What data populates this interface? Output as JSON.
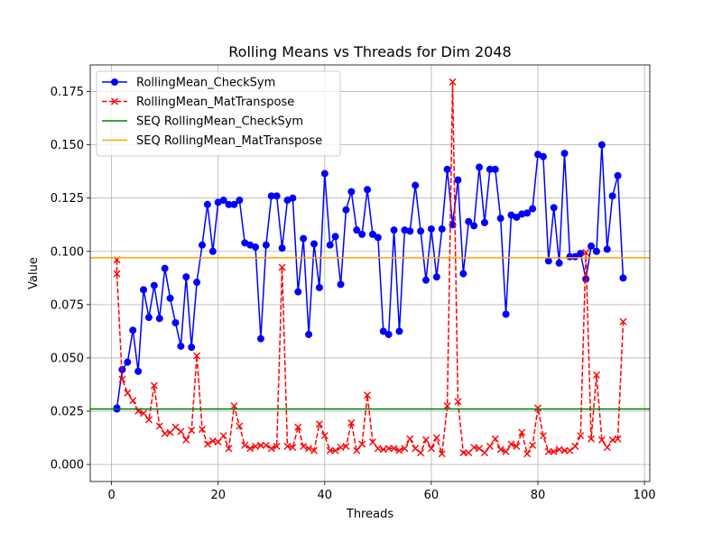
{
  "chart_data": {
    "type": "line",
    "title": "Rolling Means vs Threads for Dim 2048",
    "xlabel": "Threads",
    "ylabel": "Value",
    "xlim": [
      -4,
      101
    ],
    "ylim": [
      -0.008,
      0.1875
    ],
    "xticks": [
      "0",
      "20",
      "40",
      "60",
      "80",
      "100"
    ],
    "yticks": [
      "0.000",
      "0.025",
      "0.050",
      "0.075",
      "0.100",
      "0.125",
      "0.150",
      "0.175"
    ],
    "grid": true,
    "legend_position": "top-left",
    "series": [
      {
        "name": "RollingMean_CheckSym",
        "color": "#0000ff",
        "style": "solid",
        "marker": "circle",
        "points": [
          [
            1,
            0.026
          ],
          [
            1,
            0.0265
          ],
          [
            2,
            0.0445
          ],
          [
            3,
            0.048
          ],
          [
            4,
            0.063
          ],
          [
            5,
            0.0437
          ],
          [
            6,
            0.082
          ],
          [
            7,
            0.069
          ],
          [
            8,
            0.084
          ],
          [
            9,
            0.0685
          ],
          [
            10,
            0.092
          ],
          [
            11,
            0.078
          ],
          [
            12,
            0.0665
          ],
          [
            13,
            0.0555
          ],
          [
            14,
            0.088
          ],
          [
            15,
            0.055
          ],
          [
            16,
            0.0855
          ],
          [
            17,
            0.103
          ],
          [
            18,
            0.122
          ],
          [
            19,
            0.1
          ],
          [
            20,
            0.123
          ],
          [
            21,
            0.124
          ],
          [
            22,
            0.122
          ],
          [
            23,
            0.122
          ],
          [
            24,
            0.124
          ],
          [
            25,
            0.104
          ],
          [
            26,
            0.103
          ],
          [
            27,
            0.102
          ],
          [
            28,
            0.059
          ],
          [
            29,
            0.103
          ],
          [
            30,
            0.126
          ],
          [
            31,
            0.126
          ],
          [
            32,
            0.1015
          ],
          [
            33,
            0.124
          ],
          [
            34,
            0.125
          ],
          [
            35,
            0.081
          ],
          [
            36,
            0.106
          ],
          [
            37,
            0.061
          ],
          [
            38,
            0.1035
          ],
          [
            39,
            0.083
          ],
          [
            40,
            0.1365
          ],
          [
            41,
            0.103
          ],
          [
            42,
            0.107
          ],
          [
            43,
            0.0845
          ],
          [
            44,
            0.1195
          ],
          [
            45,
            0.128
          ],
          [
            46,
            0.11
          ],
          [
            47,
            0.108
          ],
          [
            48,
            0.129
          ],
          [
            49,
            0.108
          ],
          [
            50,
            0.1065
          ],
          [
            51,
            0.0625
          ],
          [
            52,
            0.061
          ],
          [
            53,
            0.11
          ],
          [
            54,
            0.0625
          ],
          [
            55,
            0.11
          ],
          [
            56,
            0.1095
          ],
          [
            57,
            0.131
          ],
          [
            58,
            0.1095
          ],
          [
            59,
            0.0865
          ],
          [
            60,
            0.1105
          ],
          [
            61,
            0.088
          ],
          [
            62,
            0.1105
          ],
          [
            63,
            0.1385
          ],
          [
            64,
            0.1125
          ],
          [
            65,
            0.1335
          ],
          [
            66,
            0.0895
          ],
          [
            67,
            0.114
          ],
          [
            68,
            0.112
          ],
          [
            69,
            0.1395
          ],
          [
            70,
            0.1135
          ],
          [
            71,
            0.1385
          ],
          [
            72,
            0.1385
          ],
          [
            73,
            0.1155
          ],
          [
            74,
            0.0705
          ],
          [
            75,
            0.117
          ],
          [
            76,
            0.116
          ],
          [
            77,
            0.1175
          ],
          [
            78,
            0.118
          ],
          [
            79,
            0.12
          ],
          [
            80,
            0.1455
          ],
          [
            81,
            0.1445
          ],
          [
            82,
            0.0955
          ],
          [
            83,
            0.1205
          ],
          [
            84,
            0.0945
          ],
          [
            85,
            0.146
          ],
          [
            86,
            0.0975
          ],
          [
            87,
            0.0975
          ],
          [
            88,
            0.099
          ],
          [
            89,
            0.087
          ],
          [
            90,
            0.1025
          ],
          [
            91,
            0.1
          ],
          [
            92,
            0.15
          ],
          [
            93,
            0.101
          ],
          [
            94,
            0.126
          ],
          [
            95,
            0.1355
          ],
          [
            96,
            0.0875
          ]
        ]
      },
      {
        "name": "RollingMean_MatTranspose",
        "color": "#ff0000",
        "style": "dashed",
        "marker": "x",
        "points": [
          [
            1,
            0.096
          ],
          [
            1,
            0.0895
          ],
          [
            2,
            0.04
          ],
          [
            3,
            0.0335
          ],
          [
            4,
            0.03
          ],
          [
            5,
            0.025
          ],
          [
            6,
            0.024
          ],
          [
            7,
            0.021
          ],
          [
            8,
            0.037
          ],
          [
            9,
            0.018
          ],
          [
            10,
            0.0145
          ],
          [
            11,
            0.015
          ],
          [
            12,
            0.0175
          ],
          [
            13,
            0.0155
          ],
          [
            14,
            0.0115
          ],
          [
            15,
            0.016
          ],
          [
            16,
            0.051
          ],
          [
            17,
            0.0165
          ],
          [
            18,
            0.0095
          ],
          [
            19,
            0.011
          ],
          [
            20,
            0.0105
          ],
          [
            21,
            0.0135
          ],
          [
            22,
            0.0075
          ],
          [
            23,
            0.0275
          ],
          [
            24,
            0.018
          ],
          [
            25,
            0.009
          ],
          [
            26,
            0.0075
          ],
          [
            27,
            0.0085
          ],
          [
            28,
            0.009
          ],
          [
            29,
            0.009
          ],
          [
            30,
            0.0075
          ],
          [
            31,
            0.0085
          ],
          [
            32,
            0.0925
          ],
          [
            33,
            0.0085
          ],
          [
            34,
            0.008
          ],
          [
            35,
            0.0175
          ],
          [
            36,
            0.0085
          ],
          [
            37,
            0.0075
          ],
          [
            38,
            0.0065
          ],
          [
            39,
            0.019
          ],
          [
            40,
            0.0135
          ],
          [
            41,
            0.0065
          ],
          [
            42,
            0.0065
          ],
          [
            43,
            0.008
          ],
          [
            44,
            0.0085
          ],
          [
            45,
            0.0195
          ],
          [
            46,
            0.0065
          ],
          [
            47,
            0.0095
          ],
          [
            48,
            0.0325
          ],
          [
            49,
            0.0105
          ],
          [
            50,
            0.0075
          ],
          [
            51,
            0.007
          ],
          [
            52,
            0.0075
          ],
          [
            53,
            0.0075
          ],
          [
            54,
            0.0065
          ],
          [
            55,
            0.0075
          ],
          [
            56,
            0.012
          ],
          [
            57,
            0.0075
          ],
          [
            58,
            0.0055
          ],
          [
            59,
            0.0115
          ],
          [
            60,
            0.0075
          ],
          [
            61,
            0.0125
          ],
          [
            62,
            0.005
          ],
          [
            63,
            0.0275
          ],
          [
            64,
            0.1795
          ],
          [
            65,
            0.0295
          ],
          [
            66,
            0.0055
          ],
          [
            67,
            0.0055
          ],
          [
            68,
            0.008
          ],
          [
            69,
            0.0075
          ],
          [
            70,
            0.0055
          ],
          [
            71,
            0.0085
          ],
          [
            72,
            0.012
          ],
          [
            73,
            0.007
          ],
          [
            74,
            0.006
          ],
          [
            75,
            0.0095
          ],
          [
            76,
            0.0085
          ],
          [
            77,
            0.015
          ],
          [
            78,
            0.005
          ],
          [
            79,
            0.009
          ],
          [
            80,
            0.0265
          ],
          [
            81,
            0.0135
          ],
          [
            82,
            0.006
          ],
          [
            83,
            0.006
          ],
          [
            84,
            0.007
          ],
          [
            85,
            0.0065
          ],
          [
            86,
            0.0065
          ],
          [
            87,
            0.0085
          ],
          [
            88,
            0.0135
          ],
          [
            89,
            0.0995
          ],
          [
            90,
            0.012
          ],
          [
            91,
            0.042
          ],
          [
            92,
            0.0115
          ],
          [
            93,
            0.008
          ],
          [
            94,
            0.0115
          ],
          [
            95,
            0.012
          ],
          [
            96,
            0.067
          ]
        ]
      },
      {
        "name": "SEQ RollingMean_CheckSym",
        "color": "#008000",
        "style": "hline",
        "marker": "none",
        "y": 0.026
      },
      {
        "name": "SEQ RollingMean_MatTranspose",
        "color": "#ffa500",
        "style": "hline",
        "marker": "none",
        "y": 0.097
      }
    ]
  }
}
